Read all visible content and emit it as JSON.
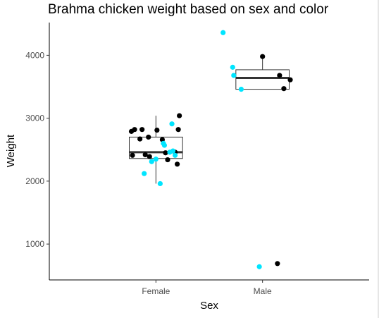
{
  "chart_data": {
    "type": "box",
    "title": "Brahma chicken weight based on sex and color",
    "xlabel": "Sex",
    "ylabel": "Weight",
    "categories": [
      "Female",
      "Male"
    ],
    "ylim": [
      430,
      4520
    ],
    "yticks": [
      1000,
      2000,
      3000,
      4000
    ],
    "grid": false,
    "boxes": [
      {
        "category": "Female",
        "whisker_low": 1960,
        "q1": 2360,
        "median": 2460,
        "q3": 2700,
        "whisker_high": 3040
      },
      {
        "category": "Male",
        "whisker_low": 3460,
        "q1": 3460,
        "median": 3640,
        "q3": 3770,
        "whisker_high": 3980
      }
    ],
    "series": [
      {
        "color": "#000000",
        "points": [
          {
            "x": 0.77,
            "y": 2790
          },
          {
            "x": 0.8,
            "y": 2820
          },
          {
            "x": 0.87,
            "y": 2820
          },
          {
            "x": 0.85,
            "y": 2670
          },
          {
            "x": 0.78,
            "y": 2410
          },
          {
            "x": 0.9,
            "y": 2420
          },
          {
            "x": 0.94,
            "y": 2390
          },
          {
            "x": 0.93,
            "y": 2700
          },
          {
            "x": 1.01,
            "y": 2810
          },
          {
            "x": 1.06,
            "y": 2660
          },
          {
            "x": 1.09,
            "y": 2450
          },
          {
            "x": 1.11,
            "y": 2340
          },
          {
            "x": 1.18,
            "y": 2460
          },
          {
            "x": 1.2,
            "y": 2270
          },
          {
            "x": 1.21,
            "y": 2820
          },
          {
            "x": 1.22,
            "y": 3040
          },
          {
            "x": 2.0,
            "y": 3980
          },
          {
            "x": 2.16,
            "y": 3680
          },
          {
            "x": 2.2,
            "y": 3470
          },
          {
            "x": 2.26,
            "y": 3610
          },
          {
            "x": 2.14,
            "y": 690
          }
        ]
      },
      {
        "color": "#00e5ff",
        "points": [
          {
            "x": 0.89,
            "y": 2120
          },
          {
            "x": 0.96,
            "y": 2310
          },
          {
            "x": 1.0,
            "y": 2350
          },
          {
            "x": 1.04,
            "y": 1960
          },
          {
            "x": 1.07,
            "y": 2600
          },
          {
            "x": 1.08,
            "y": 2570
          },
          {
            "x": 1.13,
            "y": 2460
          },
          {
            "x": 1.15,
            "y": 2910
          },
          {
            "x": 1.16,
            "y": 2480
          },
          {
            "x": 1.18,
            "y": 2410
          },
          {
            "x": 1.63,
            "y": 4360
          },
          {
            "x": 1.72,
            "y": 3810
          },
          {
            "x": 1.73,
            "y": 3680
          },
          {
            "x": 1.8,
            "y": 3460
          },
          {
            "x": 1.97,
            "y": 640
          }
        ]
      }
    ]
  }
}
